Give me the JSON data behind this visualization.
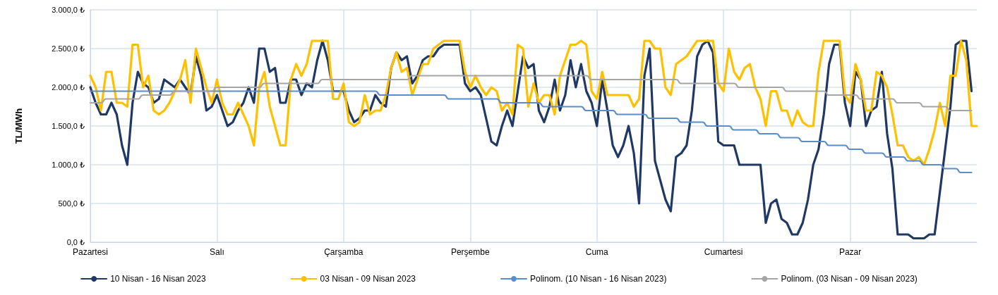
{
  "chart_data": {
    "type": "line",
    "ylabel": "TL/MWh",
    "categories": [
      "Pazartesi",
      null,
      null,
      null,
      null,
      null,
      null,
      null,
      null,
      null,
      null,
      null,
      null,
      null,
      null,
      null,
      null,
      null,
      null,
      null,
      null,
      null,
      null,
      null,
      "Salı",
      null,
      null,
      null,
      null,
      null,
      null,
      null,
      null,
      null,
      null,
      null,
      null,
      null,
      null,
      null,
      null,
      null,
      null,
      null,
      null,
      null,
      null,
      null,
      "Çarşamba",
      null,
      null,
      null,
      null,
      null,
      null,
      null,
      null,
      null,
      null,
      null,
      null,
      null,
      null,
      null,
      null,
      null,
      null,
      null,
      null,
      null,
      null,
      null,
      "Perşembe",
      null,
      null,
      null,
      null,
      null,
      null,
      null,
      null,
      null,
      null,
      null,
      null,
      null,
      null,
      null,
      null,
      null,
      null,
      null,
      null,
      null,
      null,
      null,
      "Cuma",
      null,
      null,
      null,
      null,
      null,
      null,
      null,
      null,
      null,
      null,
      null,
      null,
      null,
      null,
      null,
      null,
      null,
      null,
      null,
      null,
      null,
      null,
      null,
      "Cumartesi",
      null,
      null,
      null,
      null,
      null,
      null,
      null,
      null,
      null,
      null,
      null,
      null,
      null,
      null,
      null,
      null,
      null,
      null,
      null,
      null,
      null,
      null,
      null,
      "Pazar",
      null,
      null,
      null,
      null,
      null,
      null,
      null,
      null,
      null,
      null,
      null,
      null,
      null,
      null,
      null,
      null,
      null,
      null,
      null,
      null,
      null,
      null,
      null,
      null
    ],
    "series": [
      {
        "name": "10 Nisan - 16 Nisan 2023",
        "color": "#1f3864",
        "values": [
          2000,
          1800,
          1650,
          1650,
          1800,
          1650,
          1250,
          1000,
          1800,
          2200,
          2050,
          2000,
          1800,
          1850,
          2100,
          2050,
          2000,
          2100,
          2000,
          1900,
          2400,
          2150,
          1700,
          1750,
          1900,
          1700,
          1500,
          1550,
          1700,
          1800,
          2000,
          1800,
          2500,
          2500,
          2200,
          2250,
          1800,
          1800,
          2100,
          2100,
          1900,
          2050,
          2000,
          2350,
          2600,
          2350,
          1950,
          1950,
          1950,
          1700,
          1550,
          1600,
          1700,
          1700,
          1900,
          1800,
          1750,
          2250,
          2450,
          2350,
          2400,
          2050,
          2150,
          2350,
          2400,
          2400,
          2500,
          2550,
          2550,
          2550,
          2550,
          2050,
          1950,
          2000,
          1900,
          1600,
          1300,
          1250,
          1500,
          1700,
          1500,
          1950,
          2400,
          2250,
          2300,
          1700,
          1550,
          1750,
          2100,
          1700,
          1900,
          2350,
          2000,
          2300,
          1950,
          1800,
          1500,
          2100,
          1700,
          1250,
          1100,
          1250,
          1500,
          1150,
          500,
          2150,
          2500,
          1050,
          800,
          550,
          400,
          1100,
          1150,
          1250,
          1700,
          2400,
          2550,
          2600,
          2450,
          1300,
          1250,
          1250,
          1250,
          1000,
          1000,
          1000,
          1000,
          1000,
          250,
          500,
          550,
          300,
          250,
          100,
          100,
          250,
          550,
          1000,
          1200,
          1650,
          2300,
          2550,
          2550,
          1800,
          1500,
          2200,
          2100,
          1500,
          1700,
          1750,
          2200,
          1400,
          950,
          100,
          100,
          100,
          50,
          50,
          50,
          100,
          100,
          650,
          1200,
          1750,
          2550,
          2600,
          2600,
          1950,
          null
        ]
      },
      {
        "name": "03 Nisan - 09 Nisan 2023",
        "color": "#ffc000",
        "values": [
          2150,
          2000,
          1700,
          2200,
          2200,
          1800,
          1800,
          1750,
          2550,
          2550,
          2000,
          2150,
          1700,
          1650,
          1700,
          1800,
          1950,
          2100,
          2350,
          1800,
          2500,
          2250,
          2000,
          1800,
          2100,
          1800,
          1650,
          1650,
          1800,
          1650,
          1500,
          1250,
          2000,
          2200,
          1750,
          1500,
          1250,
          1250,
          2100,
          2300,
          2150,
          2300,
          2600,
          2600,
          2600,
          2600,
          1850,
          1850,
          2050,
          1550,
          1500,
          1550,
          1900,
          1650,
          1700,
          1700,
          1900,
          2250,
          2450,
          2200,
          2250,
          1900,
          2100,
          2300,
          2300,
          2500,
          2550,
          2600,
          2600,
          2600,
          2600,
          2200,
          2000,
          2150,
          2000,
          1900,
          2000,
          1950,
          1700,
          1800,
          1650,
          2550,
          2500,
          1750,
          2050,
          1800,
          1900,
          1900,
          1650,
          2150,
          2350,
          2550,
          2550,
          2600,
          2550,
          1950,
          1850,
          2200,
          1900,
          1900,
          1900,
          1900,
          1900,
          1750,
          1850,
          2600,
          2600,
          2500,
          2500,
          2000,
          1900,
          2300,
          2350,
          2400,
          2500,
          2600,
          2600,
          2600,
          2600,
          2050,
          1950,
          2500,
          2200,
          2100,
          2250,
          2300,
          2000,
          1850,
          1500,
          1950,
          1950,
          1700,
          1700,
          1500,
          1700,
          1550,
          1500,
          1500,
          2200,
          2600,
          2600,
          2600,
          2600,
          1900,
          1800,
          2300,
          2100,
          1700,
          1700,
          2200,
          2150,
          2000,
          1650,
          1250,
          1250,
          1100,
          1050,
          1100,
          1000,
          1200,
          1450,
          1800,
          1500,
          2150,
          2150,
          2600,
          2350,
          1500,
          1500
        ]
      },
      {
        "name": "Polinom. (10 Nisan - 16 Nisan 2023)",
        "color": "#5b8ccc",
        "values": [
          1950,
          1950,
          1950,
          1950,
          1950,
          1950,
          1950,
          1950,
          1950,
          1950,
          1950,
          1950,
          1950,
          1950,
          1950,
          1950,
          1950,
          1950,
          1950,
          1950,
          1950,
          1950,
          1950,
          1950,
          1950,
          1950,
          1950,
          1950,
          1950,
          1950,
          1950,
          1950,
          1950,
          1950,
          1950,
          1950,
          1950,
          1950,
          1950,
          1950,
          1950,
          1950,
          1950,
          1950,
          1950,
          1950,
          1950,
          1950,
          1950,
          1950,
          1950,
          1950,
          1950,
          1950,
          1950,
          1900,
          1900,
          1900,
          1900,
          1900,
          1900,
          1900,
          1900,
          1900,
          1900,
          1900,
          1900,
          1900,
          1850,
          1850,
          1850,
          1850,
          1850,
          1850,
          1850,
          1850,
          1850,
          1850,
          1800,
          1800,
          1800,
          1800,
          1800,
          1800,
          1800,
          1800,
          1750,
          1750,
          1750,
          1750,
          1750,
          1750,
          1750,
          1750,
          1700,
          1700,
          1700,
          1700,
          1700,
          1700,
          1650,
          1650,
          1650,
          1650,
          1650,
          1650,
          1600,
          1600,
          1600,
          1600,
          1600,
          1600,
          1550,
          1550,
          1550,
          1550,
          1550,
          1500,
          1500,
          1500,
          1500,
          1500,
          1450,
          1450,
          1450,
          1450,
          1450,
          1400,
          1400,
          1400,
          1400,
          1350,
          1350,
          1350,
          1350,
          1300,
          1300,
          1300,
          1300,
          1300,
          1250,
          1250,
          1250,
          1250,
          1200,
          1200,
          1200,
          1150,
          1150,
          1150,
          1150,
          1100,
          1100,
          1100,
          1100,
          1050,
          1050,
          1050,
          1000,
          1000,
          1000,
          1000,
          950,
          950,
          950,
          900,
          900,
          900,
          null
        ]
      },
      {
        "name": "Polinom. (03 Nisan - 09 Nisan 2023)",
        "color": "#a5a5a5",
        "values": [
          1800,
          1800,
          1800,
          1850,
          1850,
          1850,
          1850,
          1850,
          1850,
          1850,
          1900,
          1900,
          1900,
          1900,
          1900,
          1900,
          1950,
          1950,
          1950,
          1950,
          1950,
          1950,
          1950,
          1950,
          2000,
          2000,
          2000,
          2000,
          2000,
          2000,
          2000,
          2000,
          2000,
          2050,
          2050,
          2050,
          2050,
          2050,
          2050,
          2050,
          2050,
          2050,
          2050,
          2050,
          2100,
          2100,
          2100,
          2100,
          2100,
          2100,
          2100,
          2100,
          2100,
          2100,
          2100,
          2100,
          2100,
          2100,
          2100,
          2100,
          2100,
          2150,
          2150,
          2150,
          2150,
          2150,
          2150,
          2150,
          2150,
          2150,
          2150,
          2150,
          2150,
          2150,
          2150,
          2150,
          2150,
          2150,
          2150,
          2150,
          2150,
          2150,
          2150,
          2150,
          2150,
          2150,
          2150,
          2150,
          2150,
          2150,
          2150,
          2150,
          2150,
          2150,
          2150,
          2100,
          2100,
          2100,
          2100,
          2100,
          2100,
          2100,
          2100,
          2100,
          2100,
          2100,
          2100,
          2100,
          2100,
          2100,
          2100,
          2100,
          2050,
          2050,
          2050,
          2050,
          2050,
          2050,
          2050,
          2050,
          2050,
          2050,
          2050,
          2000,
          2000,
          2000,
          2000,
          2000,
          2000,
          2000,
          2000,
          2000,
          1950,
          1950,
          1950,
          1950,
          1950,
          1950,
          1950,
          1950,
          1900,
          1900,
          1900,
          1900,
          1900,
          1900,
          1850,
          1850,
          1850,
          1850,
          1850,
          1850,
          1850,
          1800,
          1800,
          1800,
          1800,
          1800,
          1750,
          1750,
          1750,
          1750,
          1750,
          1700,
          1700,
          1700,
          1700,
          1700,
          null
        ]
      }
    ],
    "ylim": [
      0,
      3000
    ],
    "yticks": [
      {
        "value": 0,
        "label": "0,0 ₺"
      },
      {
        "value": 500,
        "label": "500,0 ₺"
      },
      {
        "value": 1000,
        "label": "1.000,0 ₺"
      },
      {
        "value": 1500,
        "label": "1.500,0 ₺"
      },
      {
        "value": 2000,
        "label": "2.000,0 ₺"
      },
      {
        "value": 2500,
        "label": "2.500,0 ₺"
      },
      {
        "value": 3000,
        "label": "3.000,0 ₺"
      }
    ],
    "grid": true,
    "legend": "bottom",
    "marker": "none",
    "line_style": "solid"
  }
}
